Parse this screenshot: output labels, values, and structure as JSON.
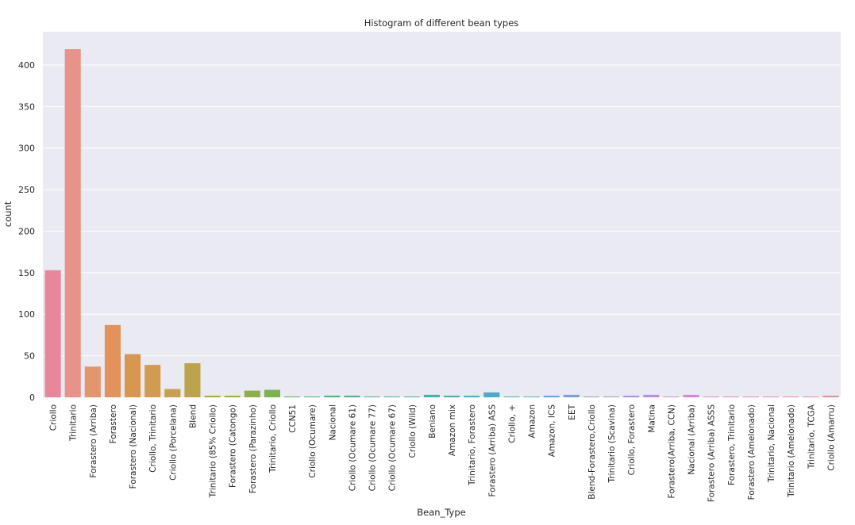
{
  "chart_data": {
    "type": "bar",
    "title": "Histogram of different bean types",
    "xlabel": "Bean_Type",
    "ylabel": "count",
    "ylim": [
      0,
      440
    ],
    "yticks": [
      0,
      50,
      100,
      150,
      200,
      250,
      300,
      350,
      400
    ],
    "grid": true,
    "categories": [
      "Criollo",
      "Trinitario",
      "Forastero (Arriba)",
      "Forastero",
      "Forastero (Nacional)",
      "Criollo, Trinitario",
      "Criollo (Porcelana)",
      "Blend",
      "Trinitario (85% Criollo)",
      "Forastero (Catongo)",
      "Forastero (Parazinho)",
      "Trinitario, Criollo",
      "CCN51",
      "Criollo (Ocumare)",
      "Nacional",
      "Criollo (Ocumare 61)",
      "Criollo (Ocumare 77)",
      "Criollo (Ocumare 67)",
      "Criollo (Wild)",
      "Beniano",
      "Amazon mix",
      "Trinitario, Forastero",
      "Forastero (Arriba) ASS",
      "Criollo, +",
      "Amazon",
      "Amazon, ICS",
      "EET",
      "Blend-Forastero,Criollo",
      "Trinitario (Scavina)",
      "Criollo, Forastero",
      "Matina",
      "Forastero(Arriba, CCN)",
      "Nacional (Arriba)",
      "Forastero (Arriba) ASSS",
      "Forastero, Trinitario",
      "Forastero (Amelonado)",
      "Trinitario, Nacional",
      "Trinitario (Amelonado)",
      "Trinitario, TCGA",
      "Criollo (Amarru)"
    ],
    "values": [
      153,
      419,
      37,
      87,
      52,
      39,
      10,
      41,
      2,
      2,
      8,
      9,
      1,
      1,
      2,
      2,
      1,
      1,
      1,
      3,
      2,
      2,
      6,
      1,
      1,
      2,
      3,
      1,
      1,
      2,
      3,
      1,
      3,
      1,
      1,
      1,
      1,
      1,
      1,
      2
    ],
    "colors": [
      "#e8879b",
      "#e8938a",
      "#e3956c",
      "#e2925a",
      "#d89751",
      "#d19c51",
      "#c7a050",
      "#bca34e",
      "#aca74d",
      "#9fab4c",
      "#8eae4b",
      "#7cb24f",
      "#55b55b",
      "#4fb573",
      "#4cb482",
      "#4bb38e",
      "#4ab299",
      "#4ab1a1",
      "#4aafaa",
      "#4aaeb1",
      "#4badb9",
      "#4cacc1",
      "#4eaac9",
      "#55a8d1",
      "#5fa5d8",
      "#6ea1e0",
      "#7f9ce6",
      "#9198eb",
      "#a194ec",
      "#b090ea",
      "#bd8ce7",
      "#c889e3",
      "#d286df",
      "#db86d9",
      "#e386d0",
      "#e887c7",
      "#e987bd",
      "#e888b3",
      "#e889aa",
      "#e88aa2"
    ]
  }
}
